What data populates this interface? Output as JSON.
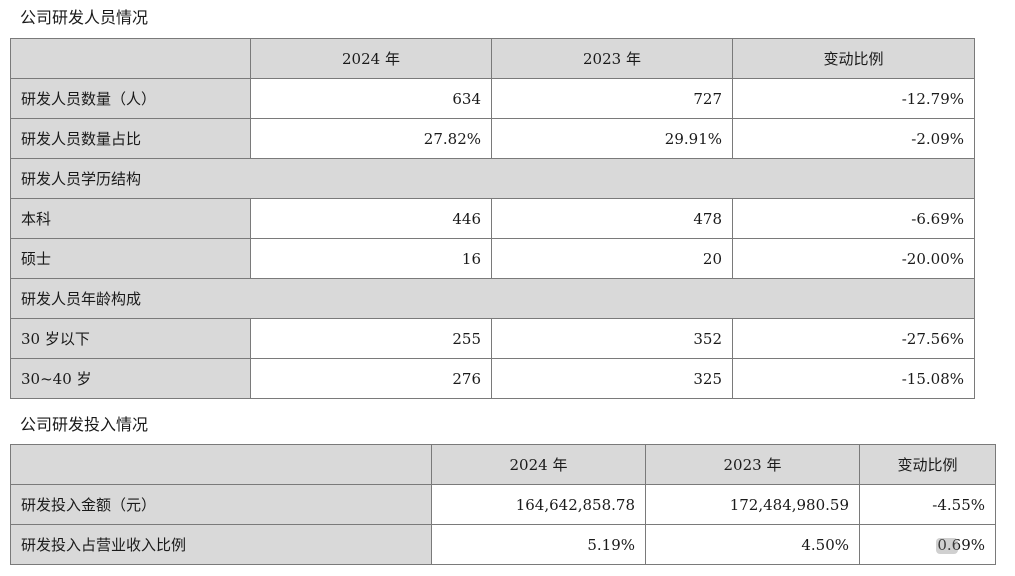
{
  "personnel": {
    "title": "公司研发人员情况",
    "headers": [
      "",
      "2024 年",
      "2023 年",
      "变动比例"
    ],
    "rows": [
      {
        "label": "研发人员数量（人）",
        "v2024": "634",
        "v2023": "727",
        "change": "-12.79%"
      },
      {
        "label": "研发人员数量占比",
        "v2024": "27.82%",
        "v2023": "29.91%",
        "change": "-2.09%"
      },
      {
        "label": "研发人员学历结构"
      },
      {
        "label": "本科",
        "v2024": "446",
        "v2023": "478",
        "change": "-6.69%"
      },
      {
        "label": "硕士",
        "v2024": "16",
        "v2023": "20",
        "change": "-20.00%"
      },
      {
        "label": "研发人员年龄构成"
      },
      {
        "label": "30 岁以下",
        "v2024": "255",
        "v2023": "352",
        "change": "-27.56%"
      },
      {
        "label": "30~40 岁",
        "v2024": "276",
        "v2023": "325",
        "change": "-15.08%"
      }
    ]
  },
  "investment": {
    "title": "公司研发投入情况",
    "headers": [
      "",
      "2024 年",
      "2023 年",
      "变动比例"
    ],
    "rows": [
      {
        "label": "研发投入金额（元）",
        "v2024": "164,642,858.78",
        "v2023": "172,484,980.59",
        "change": "-4.55%"
      },
      {
        "label": "研发投入占营业收入比例",
        "v2024": "5.19%",
        "v2023": "4.50%",
        "change": "0.69%"
      }
    ]
  }
}
